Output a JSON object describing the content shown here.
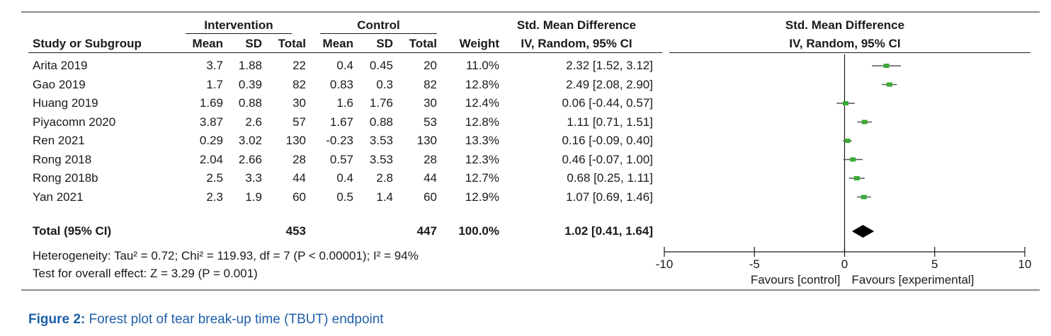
{
  "chart_data": {
    "type": "forest",
    "headers": {
      "group_intervention": "Intervention",
      "group_control": "Control",
      "study": "Study or Subgroup",
      "mean": "Mean",
      "sd": "SD",
      "total": "Total",
      "weight": "Weight",
      "smd_title": "Std. Mean Difference",
      "smd_method": "IV, Random, 95% CI",
      "plot_title": "Std. Mean Difference",
      "plot_method": "IV, Random, 95% CI"
    },
    "studies": [
      {
        "name": "Arita 2019",
        "i_mean": "3.7",
        "i_sd": "1.88",
        "i_total": "22",
        "c_mean": "0.4",
        "c_sd": "0.45",
        "c_total": "20",
        "weight": "11.0%",
        "ci_text": "2.32 [1.52, 3.12]",
        "est": 2.32,
        "lo": 1.52,
        "hi": 3.12
      },
      {
        "name": "Gao 2019",
        "i_mean": "1.7",
        "i_sd": "0.39",
        "i_total": "82",
        "c_mean": "0.83",
        "c_sd": "0.3",
        "c_total": "82",
        "weight": "12.8%",
        "ci_text": "2.49 [2.08, 2.90]",
        "est": 2.49,
        "lo": 2.08,
        "hi": 2.9
      },
      {
        "name": "Huang 2019",
        "i_mean": "1.69",
        "i_sd": "0.88",
        "i_total": "30",
        "c_mean": "1.6",
        "c_sd": "1.76",
        "c_total": "30",
        "weight": "12.4%",
        "ci_text": "0.06 [-0.44, 0.57]",
        "est": 0.06,
        "lo": -0.44,
        "hi": 0.57
      },
      {
        "name": "Piyacomn 2020",
        "i_mean": "3.87",
        "i_sd": "2.6",
        "i_total": "57",
        "c_mean": "1.67",
        "c_sd": "0.88",
        "c_total": "53",
        "weight": "12.8%",
        "ci_text": "1.11 [0.71, 1.51]",
        "est": 1.11,
        "lo": 0.71,
        "hi": 1.51
      },
      {
        "name": "Ren 2021",
        "i_mean": "0.29",
        "i_sd": "3.02",
        "i_total": "130",
        "c_mean": "-0.23",
        "c_sd": "3.53",
        "c_total": "130",
        "weight": "13.3%",
        "ci_text": "0.16 [-0.09, 0.40]",
        "est": 0.16,
        "lo": -0.09,
        "hi": 0.4
      },
      {
        "name": "Rong 2018",
        "i_mean": "2.04",
        "i_sd": "2.66",
        "i_total": "28",
        "c_mean": "0.57",
        "c_sd": "3.53",
        "c_total": "28",
        "weight": "12.3%",
        "ci_text": "0.46 [-0.07, 1.00]",
        "est": 0.46,
        "lo": -0.07,
        "hi": 1.0
      },
      {
        "name": "Rong 2018b",
        "i_mean": "2.5",
        "i_sd": "3.3",
        "i_total": "44",
        "c_mean": "0.4",
        "c_sd": "2.8",
        "c_total": "44",
        "weight": "12.7%",
        "ci_text": "0.68 [0.25, 1.11]",
        "est": 0.68,
        "lo": 0.25,
        "hi": 1.11
      },
      {
        "name": "Yan 2021",
        "i_mean": "2.3",
        "i_sd": "1.9",
        "i_total": "60",
        "c_mean": "0.5",
        "c_sd": "1.4",
        "c_total": "60",
        "weight": "12.9%",
        "ci_text": "1.07 [0.69, 1.46]",
        "est": 1.07,
        "lo": 0.69,
        "hi": 1.46
      }
    ],
    "total": {
      "label": "Total (95% CI)",
      "i_total": "453",
      "c_total": "447",
      "weight": "100.0%",
      "ci_text": "1.02 [0.41, 1.64]",
      "est": 1.02,
      "lo": 0.41,
      "hi": 1.64
    },
    "heterogeneity": "Heterogeneity: Tau² = 0.72; Chi² = 119.93, df = 7 (P < 0.00001); I² = 94%",
    "overall_effect": "Test for overall effect: Z = 3.29 (P = 0.001)",
    "xaxis": {
      "min": -10,
      "max": 10,
      "ticks": [
        -10,
        -5,
        0,
        5,
        10
      ],
      "tick_labels": [
        "-10",
        "-5",
        "0",
        "5",
        "10"
      ]
    },
    "favours_left": "Favours [control]",
    "favours_right": "Favours [experimental]",
    "marker_color": "#3aaa35"
  },
  "caption": {
    "label": "Figure 2:",
    "text": " Forest plot of tear break-up time (TBUT) endpoint"
  },
  "colors": {
    "caption": "#1f5fa8",
    "rule": "#8a8a8a",
    "text": "#1a1a1a"
  }
}
